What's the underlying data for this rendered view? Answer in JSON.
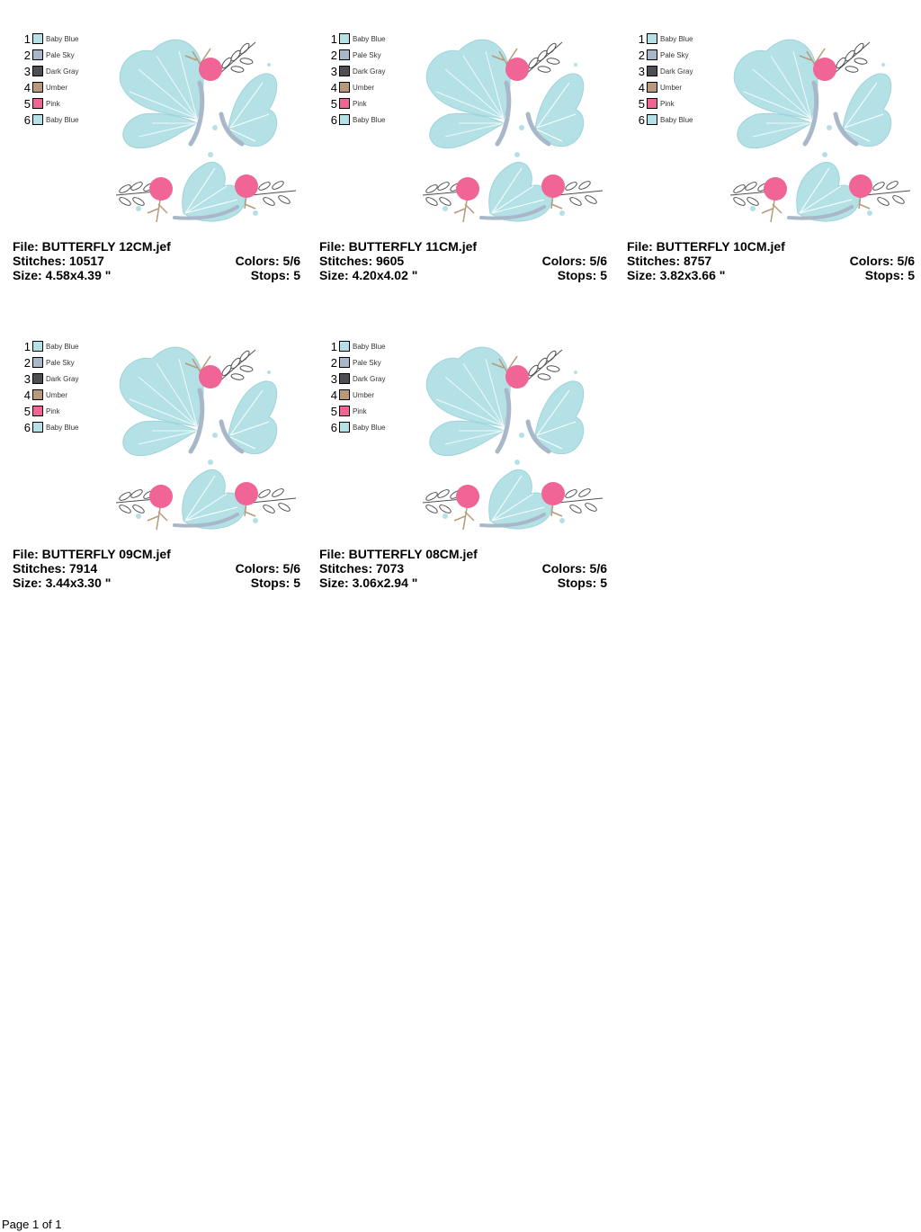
{
  "palette_colors": [
    "#b4e1e6",
    "#a9b8c9",
    "#4e4f53",
    "#b89a7a",
    "#f06496",
    "#b4e1e6"
  ],
  "labels": {
    "file": "File:",
    "stitches": "Stitches:",
    "size": "Size:",
    "colors": "Colors:",
    "stops": "Stops:"
  },
  "palette": [
    {
      "num": "1",
      "name": "Baby Blue"
    },
    {
      "num": "2",
      "name": "Pale Sky"
    },
    {
      "num": "3",
      "name": "Dark Gray"
    },
    {
      "num": "4",
      "name": "Umber"
    },
    {
      "num": "5",
      "name": "Pink"
    },
    {
      "num": "6",
      "name": "Baby Blue"
    }
  ],
  "designs": [
    {
      "file": "BUTTERFLY 12CM.jef",
      "stitches": "10517",
      "size": "4.58x4.39 \"",
      "colors": "5/6",
      "stops": "5"
    },
    {
      "file": "BUTTERFLY 11CM.jef",
      "stitches": "9605",
      "size": "4.20x4.02 \"",
      "colors": "5/6",
      "stops": "5"
    },
    {
      "file": "BUTTERFLY 10CM.jef",
      "stitches": "8757",
      "size": "3.82x3.66 \"",
      "colors": "5/6",
      "stops": "5"
    },
    {
      "file": "BUTTERFLY 09CM.jef",
      "stitches": "7914",
      "size": "3.44x3.30 \"",
      "colors": "5/6",
      "stops": "5"
    },
    {
      "file": "BUTTERFLY 08CM.jef",
      "stitches": "7073",
      "size": "3.06x2.94 \"",
      "colors": "5/6",
      "stops": "5"
    }
  ],
  "footer": "Page 1 of 1"
}
